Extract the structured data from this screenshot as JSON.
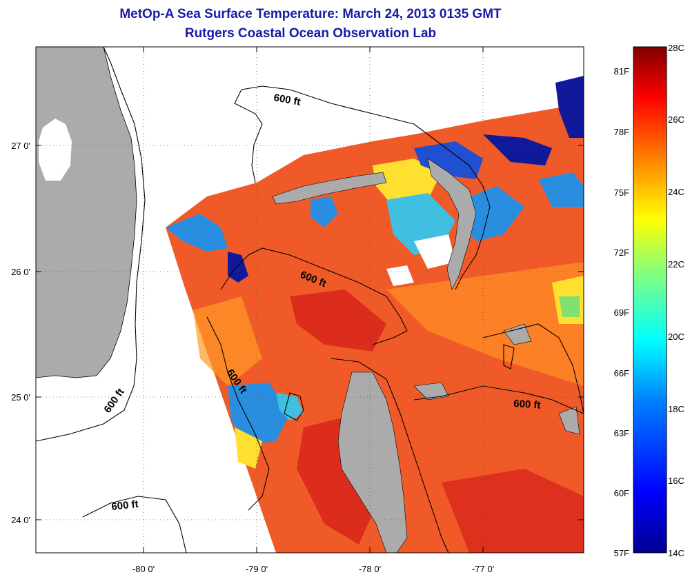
{
  "header": {
    "title": "MetOp-A Sea Surface Temperature:  March 24, 2013 0135 GMT",
    "subtitle": "Rutgers Coastal Ocean Observation Lab"
  },
  "axes": {
    "lon_ticks": [
      "-80 0'",
      "-79 0'",
      "-78 0'",
      "-77 0'"
    ],
    "lat_ticks": [
      "27 0'",
      "26 0'",
      "25 0'",
      "24 0'"
    ]
  },
  "contour_labels": [
    "600 ft",
    "600 ft",
    "600 ft",
    "600 ft",
    "600 ft",
    "600 ft"
  ],
  "colorbar": {
    "fahrenheit_labels": [
      "81F",
      "78F",
      "75F",
      "72F",
      "69F",
      "66F",
      "63F",
      "60F",
      "57F"
    ],
    "celsius_labels": [
      "28C",
      "26C",
      "24C",
      "22C",
      "20C",
      "18C",
      "16C",
      "14C"
    ],
    "colors": [
      "#7f0000",
      "#ff0000",
      "#ff8000",
      "#ffff00",
      "#80ff80",
      "#00ffff",
      "#0080ff",
      "#0000ff",
      "#00008f"
    ]
  },
  "colors": {
    "land": "#ababab",
    "sea_warm": "#f05a28",
    "sea_cool": "#2a8ee0",
    "title": "#1a1aa8"
  }
}
